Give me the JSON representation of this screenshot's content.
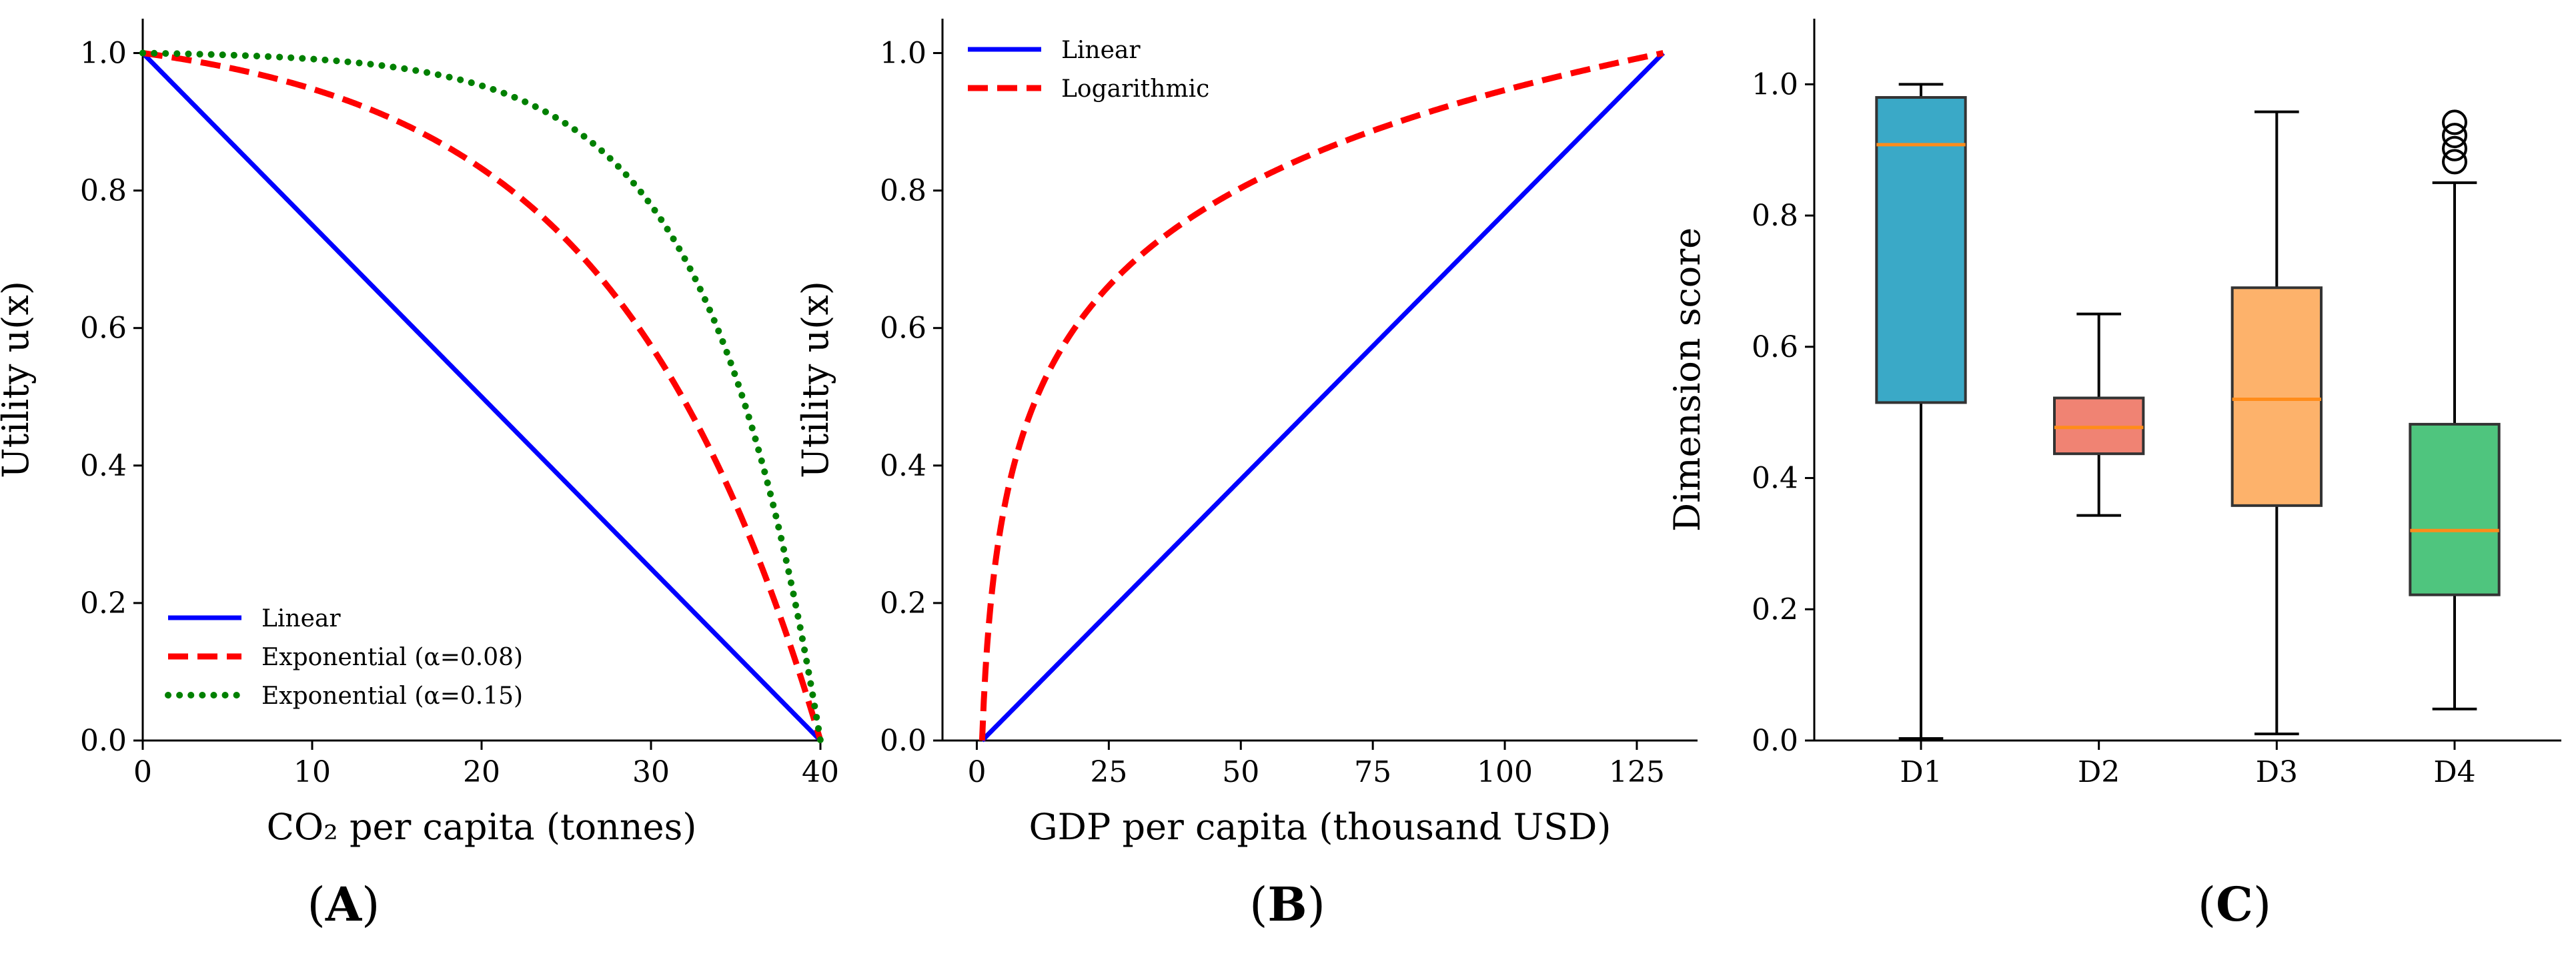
{
  "chart_data": [
    {
      "type": "line",
      "panel_label": "A",
      "xlabel": "CO₂ per capita (tonnes)",
      "ylabel": "Utility u(x)",
      "xlim": [
        0,
        40
      ],
      "ylim": [
        0,
        1.05
      ],
      "xticks": [
        0,
        10,
        20,
        30,
        40
      ],
      "yticks": [
        0.0,
        0.2,
        0.4,
        0.6,
        0.8,
        1.0
      ],
      "xtick_labels": [
        "0",
        "10",
        "20",
        "30",
        "40"
      ],
      "ytick_labels": [
        "0.0",
        "0.2",
        "0.4",
        "0.6",
        "0.8",
        "1.0"
      ],
      "legend_position": "lower-left",
      "series": [
        {
          "name": "Linear",
          "color": "#0000ff",
          "style": "solid",
          "formula": "linear_decreasing",
          "x_range": [
            0,
            40
          ]
        },
        {
          "name": "Exponential (α=0.08)",
          "color": "#ff0000",
          "style": "dashed",
          "formula": "exp_decreasing",
          "alpha": 0.08,
          "x_range": [
            0,
            40
          ]
        },
        {
          "name": "Exponential (α=0.15)",
          "color": "#008000",
          "style": "dotted",
          "formula": "exp_decreasing",
          "alpha": 0.15,
          "x_range": [
            0,
            40
          ]
        }
      ]
    },
    {
      "type": "line",
      "panel_label": "B",
      "xlabel": "GDP per capita (thousand USD)",
      "ylabel": "Utility u(x)",
      "xlim": [
        -6.5,
        136.5
      ],
      "ylim": [
        0,
        1.05
      ],
      "xticks": [
        0,
        25,
        50,
        75,
        100,
        125
      ],
      "yticks": [
        0.0,
        0.2,
        0.4,
        0.6,
        0.8,
        1.0
      ],
      "xtick_labels": [
        "0",
        "25",
        "50",
        "75",
        "100",
        "125"
      ],
      "ytick_labels": [
        "0.0",
        "0.2",
        "0.4",
        "0.6",
        "0.8",
        "1.0"
      ],
      "legend_position": "top-left",
      "series": [
        {
          "name": "Linear",
          "color": "#0000ff",
          "style": "solid",
          "formula": "linear_increasing",
          "x_range": [
            1,
            130
          ]
        },
        {
          "name": "Logarithmic",
          "color": "#ff0000",
          "style": "dashed",
          "formula": "log_increasing",
          "x_range": [
            1,
            130
          ]
        }
      ]
    },
    {
      "type": "box",
      "panel_label": "C",
      "xlabel": "",
      "ylabel": "Dimension score",
      "ylim": [
        0,
        1.1
      ],
      "yticks": [
        0.0,
        0.2,
        0.4,
        0.6,
        0.8,
        1.0
      ],
      "ytick_labels": [
        "0.0",
        "0.2",
        "0.4",
        "0.6",
        "0.8",
        "1.0"
      ],
      "categories": [
        "D1",
        "D2",
        "D3",
        "D4"
      ],
      "boxes": [
        {
          "name": "D1",
          "color": "#3aa9c7",
          "whisker_low": 0.003,
          "q1": 0.515,
          "median": 0.908,
          "q3": 0.98,
          "whisker_high": 1.0,
          "outliers": []
        },
        {
          "name": "D2",
          "color": "#f08373",
          "whisker_low": 0.343,
          "q1": 0.437,
          "median": 0.477,
          "q3": 0.522,
          "whisker_high": 0.65,
          "outliers": []
        },
        {
          "name": "D3",
          "color": "#fdb26b",
          "whisker_low": 0.01,
          "q1": 0.358,
          "median": 0.52,
          "q3": 0.69,
          "whisker_high": 0.958,
          "outliers": []
        },
        {
          "name": "D4",
          "color": "#4fc57e",
          "whisker_low": 0.048,
          "q1": 0.222,
          "median": 0.32,
          "q3": 0.482,
          "whisker_high": 0.85,
          "outliers": [
            0.882,
            0.902,
            0.922,
            0.942
          ]
        }
      ],
      "median_color": "#ff8c1a"
    }
  ]
}
